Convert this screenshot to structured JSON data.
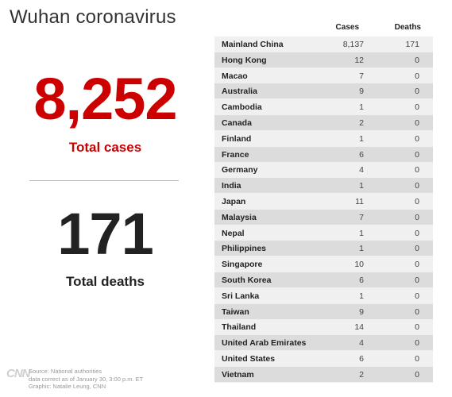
{
  "title": "Wuhan coronavirus",
  "summary": {
    "total_cases_value": "8,252",
    "total_cases_label": "Total cases",
    "total_deaths_value": "171",
    "total_deaths_label": "Total deaths"
  },
  "table": {
    "headers": {
      "cases": "Cases",
      "deaths": "Deaths"
    },
    "rows": [
      {
        "country": "Mainland China",
        "cases": "8,137",
        "deaths": "171"
      },
      {
        "country": "Hong Kong",
        "cases": "12",
        "deaths": "0"
      },
      {
        "country": "Macao",
        "cases": "7",
        "deaths": "0"
      },
      {
        "country": "Australia",
        "cases": "9",
        "deaths": "0"
      },
      {
        "country": "Cambodia",
        "cases": "1",
        "deaths": "0"
      },
      {
        "country": "Canada",
        "cases": "2",
        "deaths": "0"
      },
      {
        "country": "Finland",
        "cases": "1",
        "deaths": "0"
      },
      {
        "country": "France",
        "cases": "6",
        "deaths": "0"
      },
      {
        "country": "Germany",
        "cases": "4",
        "deaths": "0"
      },
      {
        "country": "India",
        "cases": "1",
        "deaths": "0"
      },
      {
        "country": "Japan",
        "cases": "11",
        "deaths": "0"
      },
      {
        "country": "Malaysia",
        "cases": "7",
        "deaths": "0"
      },
      {
        "country": "Nepal",
        "cases": "1",
        "deaths": "0"
      },
      {
        "country": "Philippines",
        "cases": "1",
        "deaths": "0"
      },
      {
        "country": "Singapore",
        "cases": "10",
        "deaths": "0"
      },
      {
        "country": "South Korea",
        "cases": "6",
        "deaths": "0"
      },
      {
        "country": "Sri Lanka",
        "cases": "1",
        "deaths": "0"
      },
      {
        "country": "Taiwan",
        "cases": "9",
        "deaths": "0"
      },
      {
        "country": "Thailand",
        "cases": "14",
        "deaths": "0"
      },
      {
        "country": "United Arab Emirates",
        "cases": "4",
        "deaths": "0"
      },
      {
        "country": "United States",
        "cases": "6",
        "deaths": "0"
      },
      {
        "country": "Vietnam",
        "cases": "2",
        "deaths": "0"
      }
    ]
  },
  "footer": {
    "logo": "CNN",
    "source": "Source: National authorities",
    "data_note": "data correct as of January 30, 3:00 p.m. ET",
    "credit": "Graphic: Natalie Leung, CNN"
  },
  "colors": {
    "accent": "#cc0000",
    "row_alt": "#dcdcdc",
    "row_base": "#f0f0f0"
  }
}
